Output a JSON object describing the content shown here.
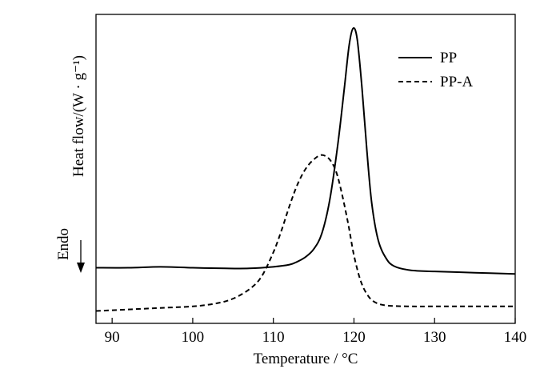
{
  "chart_data": {
    "type": "line",
    "title": "",
    "xlabel": "Temperature / °C",
    "ylabel": "Heat flow/(W · g⁻¹)",
    "xlim": [
      88,
      140
    ],
    "ylim": [
      0,
      1
    ],
    "x_ticks": [
      90,
      100,
      110,
      120,
      130,
      140
    ],
    "x_tick_labels": [
      "90",
      "100",
      "110",
      "120",
      "130",
      "140"
    ],
    "y_ticks_shown": false,
    "grid": false,
    "legend_position": "top-right",
    "annotation": {
      "text": "Endo",
      "arrow": "down"
    },
    "series": [
      {
        "name": "PP",
        "style": "solid",
        "color": "#000000",
        "points": [
          [
            88,
            0.18
          ],
          [
            92,
            0.18
          ],
          [
            96,
            0.183
          ],
          [
            100,
            0.18
          ],
          [
            104,
            0.178
          ],
          [
            107,
            0.178
          ],
          [
            110,
            0.183
          ],
          [
            112,
            0.19
          ],
          [
            113,
            0.2
          ],
          [
            114,
            0.215
          ],
          [
            115,
            0.24
          ],
          [
            116,
            0.29
          ],
          [
            117,
            0.4
          ],
          [
            118,
            0.58
          ],
          [
            118.8,
            0.76
          ],
          [
            119.4,
            0.9
          ],
          [
            119.9,
            0.955
          ],
          [
            120.4,
            0.92
          ],
          [
            121,
            0.76
          ],
          [
            121.6,
            0.56
          ],
          [
            122.2,
            0.39
          ],
          [
            123,
            0.27
          ],
          [
            124,
            0.21
          ],
          [
            125,
            0.185
          ],
          [
            127,
            0.172
          ],
          [
            130,
            0.168
          ],
          [
            135,
            0.164
          ],
          [
            140,
            0.16
          ]
        ]
      },
      {
        "name": "PP-A",
        "style": "dashed",
        "color": "#000000",
        "points": [
          [
            88,
            0.04
          ],
          [
            92,
            0.045
          ],
          [
            96,
            0.05
          ],
          [
            100,
            0.055
          ],
          [
            103,
            0.065
          ],
          [
            105,
            0.08
          ],
          [
            107,
            0.11
          ],
          [
            108.5,
            0.15
          ],
          [
            110,
            0.23
          ],
          [
            111,
            0.3
          ],
          [
            112,
            0.38
          ],
          [
            113,
            0.45
          ],
          [
            114,
            0.5
          ],
          [
            115,
            0.53
          ],
          [
            116,
            0.545
          ],
          [
            117,
            0.53
          ],
          [
            117.8,
            0.49
          ],
          [
            118.5,
            0.42
          ],
          [
            119.3,
            0.32
          ],
          [
            120,
            0.22
          ],
          [
            120.8,
            0.14
          ],
          [
            121.6,
            0.095
          ],
          [
            122.5,
            0.07
          ],
          [
            124,
            0.058
          ],
          [
            127,
            0.055
          ],
          [
            130,
            0.055
          ],
          [
            135,
            0.055
          ],
          [
            140,
            0.055
          ]
        ]
      }
    ]
  }
}
